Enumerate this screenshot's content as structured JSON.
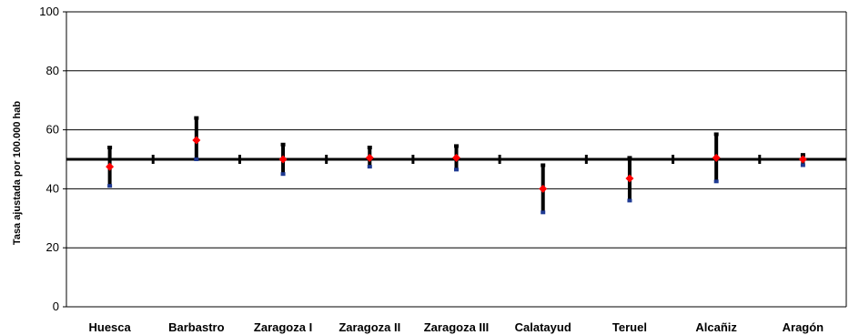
{
  "chart_data": {
    "type": "scatter",
    "title": "",
    "xlabel": "",
    "ylabel": "Tasa ajustada por 100.000 hab",
    "ylim": [
      0,
      100
    ],
    "yticks": [
      0,
      20,
      40,
      60,
      80,
      100
    ],
    "grid": true,
    "reference_line": 50,
    "categories": [
      "Huesca",
      "Barbastro",
      "Zaragoza I",
      "Zaragoza II",
      "Zaragoza III",
      "Calatayud",
      "Teruel",
      "Alcañiz",
      "Aragón"
    ],
    "values": [
      47.5,
      56.5,
      50.0,
      50.5,
      50.5,
      40.0,
      43.5,
      50.5,
      50.0
    ],
    "lower": [
      41.0,
      50.0,
      45.0,
      47.5,
      46.5,
      32.0,
      36.0,
      42.5,
      48.0
    ],
    "upper": [
      54.0,
      64.0,
      55.0,
      54.0,
      54.5,
      48.0,
      50.5,
      58.5,
      51.5
    ],
    "colors": {
      "point": "#ff0000",
      "whisker": "#000000",
      "lower_cap": "#1f3a93",
      "reference": "#000000"
    }
  }
}
